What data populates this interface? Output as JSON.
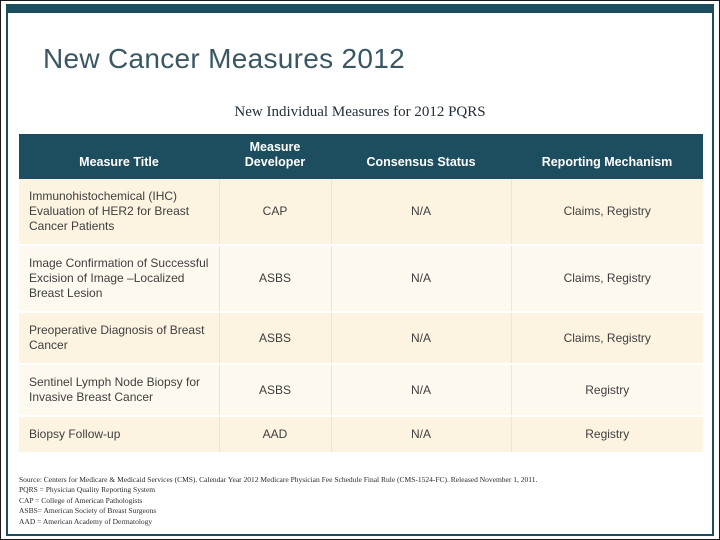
{
  "slide": {
    "title": "New Cancer Measures 2012",
    "subtitle": "New Individual Measures for 2012 PQRS"
  },
  "table": {
    "headers": [
      "Measure Title",
      "Measure Developer",
      "Consensus Status",
      "Reporting Mechanism"
    ],
    "rows": [
      {
        "title": "Immunohistochemical (IHC) Evaluation of HER2 for Breast Cancer Patients",
        "developer": "CAP",
        "consensus": "N/A",
        "reporting": "Claims, Registry"
      },
      {
        "title": "Image Confirmation of Successful Excision of Image –Localized Breast Lesion",
        "developer": "ASBS",
        "consensus": "N/A",
        "reporting": "Claims, Registry"
      },
      {
        "title": "Preoperative Diagnosis of Breast Cancer",
        "developer": "ASBS",
        "consensus": "N/A",
        "reporting": "Claims, Registry"
      },
      {
        "title": "Sentinel Lymph Node Biopsy for Invasive Breast Cancer",
        "developer": "ASBS",
        "consensus": "N/A",
        "reporting": "Registry"
      },
      {
        "title": "Biopsy Follow-up",
        "developer": "AAD",
        "consensus": "N/A",
        "reporting": "Registry"
      }
    ]
  },
  "footer": {
    "source": "Source: Centers for Medicare & Medicaid Services (CMS).  Calendar Year 2012 Medicare Physician Fee Schedule Final Rule (CMS-1524-FC).  Released November 1, 2011.",
    "notes": [
      "PQRS = Physician Quality Reporting System",
      "CAP = College of American Pathologists",
      "ASBS= American Society of Breast Surgeons",
      "AAD = American Academy of Dermatology"
    ]
  },
  "colors": {
    "accent_teal": "#1d4e5f",
    "row_cream": "#fcf3e1",
    "row_light": "#fdf9ee",
    "header_text": "#ffffff"
  }
}
